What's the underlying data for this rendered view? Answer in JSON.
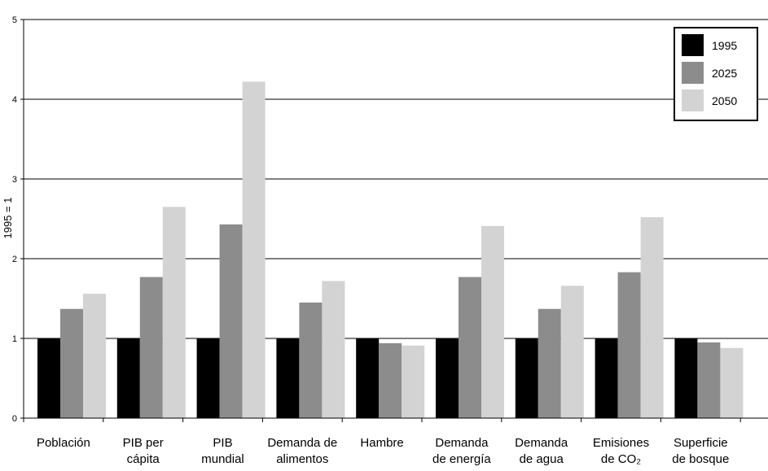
{
  "chart_data": {
    "type": "bar",
    "title": "",
    "xlabel": "",
    "ylabel": "1995 = 1",
    "ylim": [
      0,
      5
    ],
    "yticks": [
      0,
      1,
      2,
      3,
      4,
      5
    ],
    "grid": true,
    "legend_position": "top-right",
    "categories": [
      [
        "Población"
      ],
      [
        "PIB per",
        "cápita"
      ],
      [
        "PIB",
        "mundial"
      ],
      [
        "Demanda de",
        "alimentos"
      ],
      [
        "Hambre"
      ],
      [
        "Demanda",
        "de energía"
      ],
      [
        "Demanda",
        "de agua"
      ],
      [
        "Emisiones",
        "de CO₂"
      ],
      [
        "Superficie",
        "de bosque"
      ]
    ],
    "series": [
      {
        "name": "1995",
        "color": "#000000",
        "values": [
          1.0,
          1.0,
          1.0,
          1.0,
          1.0,
          1.0,
          1.0,
          1.0,
          1.0
        ]
      },
      {
        "name": "2025",
        "color": "#8c8c8c",
        "values": [
          1.37,
          1.77,
          2.43,
          1.45,
          0.94,
          1.77,
          1.37,
          1.83,
          0.95
        ]
      },
      {
        "name": "2050",
        "color": "#d3d3d3",
        "values": [
          1.56,
          2.65,
          4.22,
          1.72,
          0.91,
          2.41,
          1.66,
          2.52,
          0.88
        ]
      }
    ]
  }
}
